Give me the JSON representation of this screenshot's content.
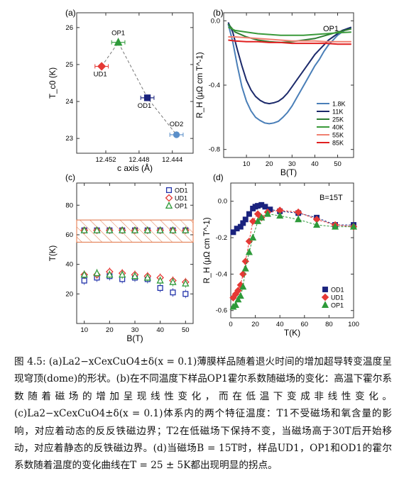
{
  "panels": {
    "a": {
      "label": "(a)"
    },
    "b": {
      "label": "(b)",
      "tag": "OP1"
    },
    "c": {
      "label": "(c)"
    },
    "d": {
      "label": "(d)",
      "tag": "B=15T"
    }
  },
  "chart_data": [
    {
      "id": "a",
      "type": "scatter",
      "xlabel": "c axis (Å)",
      "ylabel": "T_c0 (K)",
      "xlim": [
        12.4555,
        12.4415
      ],
      "ylim": [
        22.6,
        26.4
      ],
      "xticks": [
        "12.452",
        "12.448",
        "12.444"
      ],
      "yticks": [
        "23",
        "24",
        "25",
        "26"
      ],
      "trend": "dashed",
      "points": [
        {
          "name": "UD1",
          "x": 12.4525,
          "y": 24.95,
          "xerr": 0.0008,
          "color": "#e53935",
          "marker": "diamond"
        },
        {
          "name": "OP1",
          "x": 12.4505,
          "y": 25.6,
          "xerr": 0.0008,
          "color": "#2e9a3a",
          "marker": "triangle"
        },
        {
          "name": "OD1",
          "x": 12.447,
          "y": 24.1,
          "xerr": 0.0008,
          "color": "#1a237e",
          "marker": "square"
        },
        {
          "name": "OD2",
          "x": 12.4435,
          "y": 23.1,
          "xerr": 0.0008,
          "color": "#5b8fc9",
          "marker": "circle"
        }
      ]
    },
    {
      "id": "b",
      "type": "line",
      "xlabel": "B(T)",
      "ylabel": "R_H (μΩ cm T^-1)",
      "xlim": [
        0,
        57
      ],
      "ylim": [
        -0.85,
        0.05
      ],
      "xticks": [
        "10",
        "20",
        "30",
        "40",
        "50"
      ],
      "yticks": [
        "0.0",
        "-0.4",
        "-0.8"
      ],
      "legend": "bottom-right",
      "series": [
        {
          "name": "1.8K",
          "color": "#4a7fb8",
          "x": [
            2,
            4,
            6,
            8,
            10,
            12,
            14,
            16,
            18,
            20,
            22,
            24,
            26,
            28,
            30,
            32,
            34,
            36,
            38,
            40,
            42,
            44,
            46,
            48,
            50,
            52,
            54,
            56
          ],
          "y": [
            -0.02,
            -0.13,
            -0.28,
            -0.41,
            -0.5,
            -0.56,
            -0.6,
            -0.62,
            -0.635,
            -0.64,
            -0.635,
            -0.625,
            -0.6,
            -0.57,
            -0.53,
            -0.48,
            -0.43,
            -0.38,
            -0.33,
            -0.28,
            -0.24,
            -0.19,
            -0.15,
            -0.12,
            -0.09,
            -0.07,
            -0.05,
            -0.04
          ]
        },
        {
          "name": "11K",
          "color": "#1c2a6b",
          "x": [
            2,
            4,
            6,
            8,
            10,
            12,
            14,
            16,
            18,
            20,
            22,
            24,
            26,
            28,
            30,
            32,
            34,
            36,
            38,
            40,
            42,
            44,
            46,
            48,
            50,
            52,
            54,
            56
          ],
          "y": [
            -0.01,
            -0.07,
            -0.18,
            -0.28,
            -0.37,
            -0.43,
            -0.47,
            -0.495,
            -0.51,
            -0.515,
            -0.51,
            -0.5,
            -0.48,
            -0.45,
            -0.41,
            -0.37,
            -0.33,
            -0.29,
            -0.25,
            -0.21,
            -0.18,
            -0.15,
            -0.12,
            -0.1,
            -0.08,
            -0.06,
            -0.05,
            -0.04
          ]
        },
        {
          "name": "25K",
          "color": "#2e7d32",
          "x": [
            2,
            5,
            10,
            15,
            20,
            25,
            30,
            35,
            40,
            45,
            50,
            56
          ],
          "y": [
            -0.02,
            -0.07,
            -0.1,
            -0.12,
            -0.13,
            -0.135,
            -0.13,
            -0.12,
            -0.11,
            -0.09,
            -0.07,
            -0.05
          ]
        },
        {
          "name": "40K",
          "color": "#3a9a3a",
          "x": [
            2,
            5,
            10,
            15,
            20,
            25,
            30,
            35,
            40,
            45,
            50,
            56
          ],
          "y": [
            -0.04,
            -0.06,
            -0.07,
            -0.08,
            -0.085,
            -0.09,
            -0.09,
            -0.09,
            -0.085,
            -0.08,
            -0.075,
            -0.07
          ]
        },
        {
          "name": "55K",
          "color": "#f08070",
          "x": [
            2,
            5,
            10,
            15,
            20,
            25,
            30,
            35,
            40,
            45,
            50,
            56
          ],
          "y": [
            -0.1,
            -0.1,
            -0.105,
            -0.11,
            -0.115,
            -0.12,
            -0.125,
            -0.125,
            -0.125,
            -0.13,
            -0.13,
            -0.13
          ]
        },
        {
          "name": "85K",
          "color": "#e02020",
          "x": [
            2,
            5,
            10,
            15,
            20,
            25,
            30,
            35,
            40,
            45,
            50,
            56
          ],
          "y": [
            -0.12,
            -0.125,
            -0.13,
            -0.13,
            -0.135,
            -0.135,
            -0.14,
            -0.14,
            -0.14,
            -0.14,
            -0.145,
            -0.145
          ]
        }
      ]
    },
    {
      "id": "c",
      "type": "scatter",
      "xlabel": "B(T)",
      "ylabel": "T(K)",
      "xlim": [
        7,
        53
      ],
      "ylim": [
        0,
        95
      ],
      "xticks": [
        "10",
        "20",
        "30",
        "40",
        "50"
      ],
      "yticks": [
        "20",
        "40",
        "60",
        "80"
      ],
      "legend": "top-right",
      "band": [
        55,
        70
      ],
      "x": [
        10,
        15,
        20,
        25,
        30,
        35,
        40,
        45,
        50
      ],
      "series": [
        {
          "name": "OD1",
          "color": "#2233aa",
          "marker": "square",
          "y_low": [
            29,
            31,
            32,
            30,
            31,
            30,
            24,
            21,
            20
          ],
          "y_high": [
            63,
            63,
            63,
            63,
            63,
            63,
            63,
            63,
            63
          ]
        },
        {
          "name": "UD1",
          "color": "#e53935",
          "marker": "diamond",
          "y_low": [
            33,
            33,
            35,
            34,
            33,
            32,
            31,
            29,
            28
          ],
          "y_high": [
            63,
            63,
            63,
            63,
            63,
            63,
            63,
            63,
            63
          ]
        },
        {
          "name": "OP1",
          "color": "#2e9a3a",
          "marker": "triangle",
          "y_low": [
            33,
            34,
            33,
            33,
            32,
            31,
            29,
            28,
            27
          ],
          "y_high": [
            63,
            63,
            63,
            63,
            63,
            63,
            63,
            63,
            63
          ]
        }
      ]
    },
    {
      "id": "d",
      "type": "line",
      "xlabel": "T(K)",
      "ylabel": "R_H (μΩ cm T^-1)",
      "xlim": [
        0,
        100
      ],
      "ylim": [
        -0.64,
        0.1
      ],
      "xticks": [
        "0",
        "20",
        "40",
        "60",
        "80",
        "100"
      ],
      "yticks": [
        "0.0",
        "-0.2",
        "-0.4",
        "-0.6"
      ],
      "legend": "bottom-right",
      "series": [
        {
          "name": "OD1",
          "color": "#1a237e",
          "marker": "square",
          "x": [
            2,
            5,
            8,
            10,
            12,
            15,
            18,
            20,
            22,
            25,
            28,
            32,
            40,
            55,
            70,
            85,
            100
          ],
          "y": [
            -0.17,
            -0.15,
            -0.14,
            -0.12,
            -0.1,
            -0.07,
            -0.04,
            -0.03,
            -0.025,
            -0.02,
            -0.03,
            -0.045,
            -0.055,
            -0.065,
            -0.09,
            -0.13,
            -0.13
          ]
        },
        {
          "name": "UD1",
          "color": "#e53935",
          "marker": "diamond",
          "x": [
            2,
            4,
            6,
            8,
            10,
            12,
            15,
            18,
            22,
            25,
            30,
            40,
            55,
            70,
            85,
            100
          ],
          "y": [
            -0.53,
            -0.51,
            -0.49,
            -0.46,
            -0.4,
            -0.33,
            -0.22,
            -0.11,
            -0.07,
            -0.09,
            -0.06,
            -0.05,
            -0.06,
            -0.1,
            -0.13,
            -0.14
          ]
        },
        {
          "name": "OP1",
          "color": "#2e9a3a",
          "marker": "triangle",
          "x": [
            2,
            4,
            6,
            8,
            10,
            12,
            15,
            18,
            22,
            25,
            30,
            40,
            55,
            70,
            85,
            100
          ],
          "y": [
            -0.58,
            -0.57,
            -0.54,
            -0.52,
            -0.47,
            -0.37,
            -0.28,
            -0.2,
            -0.11,
            -0.09,
            -0.07,
            -0.08,
            -0.1,
            -0.13,
            -0.14,
            -0.14
          ]
        }
      ]
    }
  ],
  "caption": "图 4.5: (a)La2−xCexCuO4±δ(x = 0.1)薄膜样品随着退火时间的增加超导转变温度呈现穹顶(dome)的形状。(b)在不同温度下样品OP1霍尔系数随磁场的变化：高温下霍尔系数随着磁场的增加呈现线性变化，而在低温下变成非线性变化。(c)La2−xCexCuO4±δ(x = 0.1)体系内的两个特征温度：T1不受磁场和氧含量的影响，对应着动态的反反铁磁边界；T2在低磁场下保持不变，当磁场高于30T后开始移动，对应着静态的反铁磁边界。(d)当磁场B = 15T时，样品UD1，OP1和OD1的霍尔系数随着温度的变化曲线在T = 25 ± 5K都出现明显的拐点。"
}
